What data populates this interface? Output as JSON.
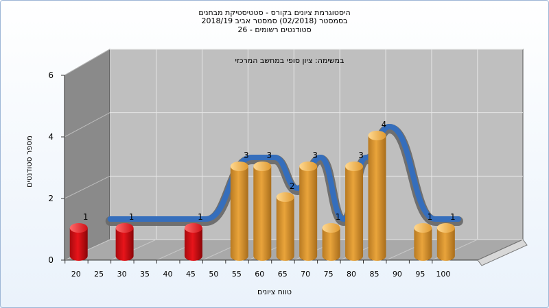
{
  "header": {
    "title_line1": "היסטוגרמת ציונים בקורס - סטטיסטיקת מבחנים",
    "title_line2": "בסמסטר (02/2018) סמסטר אביב 2018/19",
    "title_line3": "סטודנטים רשומים - 26"
  },
  "chart_data": {
    "type": "bar",
    "subtitle": "במשימה: ציון סופי במחשב המרכזי",
    "xlabel": "טווח ציונים",
    "ylabel": "מספר סטודנטים",
    "x_ticks": [
      "20",
      "25",
      "30",
      "35",
      "40",
      "45",
      "50",
      "55",
      "60",
      "65",
      "70",
      "75",
      "80",
      "85",
      "90",
      "95",
      "100"
    ],
    "y_ticks": [
      "0",
      "2",
      "4",
      "6"
    ],
    "ylim": [
      0,
      6
    ],
    "grid": true,
    "bars": [
      {
        "x": 20,
        "value": 1,
        "label": "1",
        "color": "red"
      },
      {
        "x": 30,
        "value": 1,
        "label": "1",
        "color": "red"
      },
      {
        "x": 45,
        "value": 1,
        "label": "1",
        "color": "red"
      },
      {
        "x": 55,
        "value": 3,
        "label": "3",
        "color": "gold"
      },
      {
        "x": 60,
        "value": 3,
        "label": "3",
        "color": "gold"
      },
      {
        "x": 65,
        "value": 2,
        "label": "2",
        "color": "gold"
      },
      {
        "x": 70,
        "value": 3,
        "label": "3",
        "color": "gold"
      },
      {
        "x": 75,
        "value": 1,
        "label": "1",
        "color": "gold"
      },
      {
        "x": 80,
        "value": 3,
        "label": "3",
        "color": "gold"
      },
      {
        "x": 85,
        "value": 4,
        "label": "4",
        "color": "gold"
      },
      {
        "x": 95,
        "value": 1,
        "label": "1",
        "color": "gold"
      },
      {
        "x": 100,
        "value": 1,
        "label": "1",
        "color": "gold"
      }
    ],
    "colors": {
      "red_bar": "#e8141a",
      "gold_bar": "#e9a43b",
      "wall": "#bfbfbf",
      "side_wall": "#8a8a8a",
      "floor": "#a9a9a9",
      "ribbon_dark": "#6a6a6a",
      "ribbon_blue": "#2f6ec4"
    }
  }
}
